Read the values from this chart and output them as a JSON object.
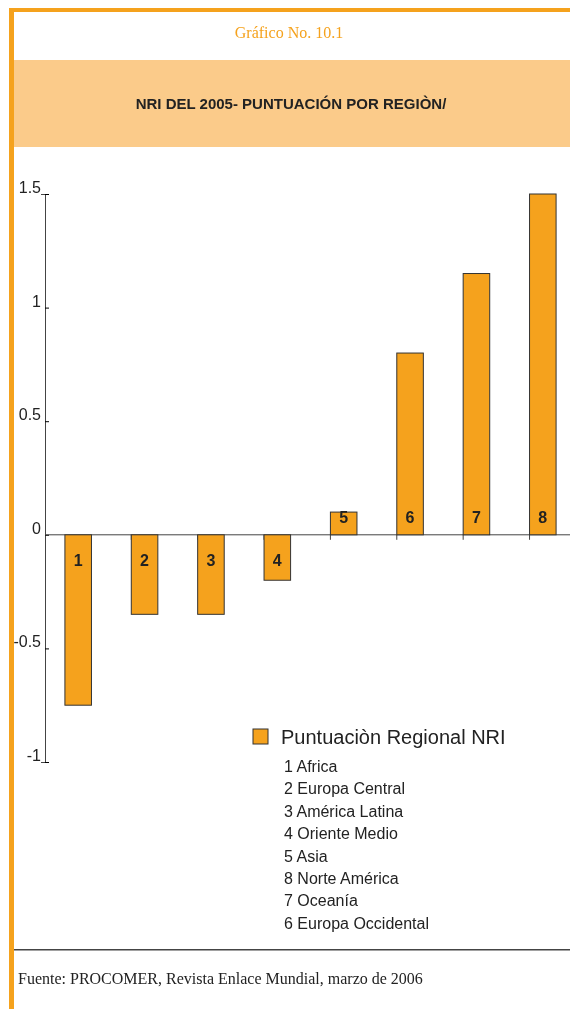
{
  "chart_data": {
    "type": "bar",
    "title": "NRI DEL 2005- PUNTUACIÓN POR REGIÒN/",
    "subtitle": "Gráfico No. 10.1",
    "categories": [
      "1",
      "2",
      "3",
      "4",
      "5",
      "6",
      "7",
      "8"
    ],
    "series": [
      {
        "name": "Puntuaciòn Regional NRI",
        "color": "#f5a21d",
        "values": [
          -0.75,
          -0.35,
          -0.35,
          -0.2,
          0.1,
          0.8,
          1.15,
          1.5
        ]
      }
    ],
    "ylim": [
      -1,
      1.5
    ],
    "yticks": [
      1.5,
      1,
      0.5,
      0,
      -0.5,
      -1
    ],
    "grid": false,
    "legend": "bottom right",
    "annotations": [
      "1 Africa",
      "2 Europa Central",
      "3 América Latina",
      "4 Oriente Medio",
      "5 Asia",
      "8 Norte América",
      "7 Oceanía",
      "6 Europa Occidental",
      "Fuente: PROCOMER, Revista Enlace Mundial, marzo de 2006"
    ]
  }
}
